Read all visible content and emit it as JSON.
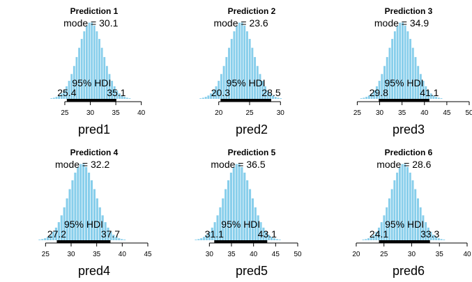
{
  "chart_data": [
    {
      "type": "bar",
      "title": "Prediction 1",
      "xlabel": "pred1",
      "mode_label": "mode = 30.1",
      "hdi_label": "95% HDI",
      "hdi_low_label": "25.4",
      "hdi_high_label": "35.1",
      "mode": 30.1,
      "hdi": [
        25.4,
        35.1
      ],
      "xlim": [
        22,
        41
      ],
      "xticks": [
        "25",
        "30",
        "35",
        "40"
      ],
      "color": "#87ceeb"
    },
    {
      "type": "bar",
      "title": "Prediction 2",
      "xlabel": "pred2",
      "mode_label": "mode = 23.6",
      "hdi_label": "95% HDI",
      "hdi_low_label": "20.3",
      "hdi_high_label": "28.5",
      "mode": 23.6,
      "hdi": [
        20.3,
        28.5
      ],
      "xlim": [
        18,
        32
      ],
      "xticks": [
        "20",
        "25",
        "30"
      ],
      "color": "#87ceeb"
    },
    {
      "type": "bar",
      "title": "Prediction 3",
      "xlabel": "pred3",
      "mode_label": "mode = 34.9",
      "hdi_label": "95% HDI",
      "hdi_low_label": "29.8",
      "hdi_high_label": "41.1",
      "mode": 34.9,
      "hdi": [
        29.8,
        41.1
      ],
      "xlim": [
        24,
        50
      ],
      "xticks": [
        "25",
        "30",
        "35",
        "40",
        "45",
        "50"
      ],
      "color": "#87ceeb"
    },
    {
      "type": "bar",
      "title": "Prediction 4",
      "xlabel": "pred4",
      "mode_label": "mode = 32.2",
      "hdi_label": "95% HDI",
      "hdi_low_label": "27.2",
      "hdi_high_label": "37.7",
      "mode": 32.2,
      "hdi": [
        27.2,
        37.7
      ],
      "xlim": [
        24,
        45
      ],
      "xticks": [
        "25",
        "30",
        "35",
        "40",
        "45"
      ],
      "color": "#87ceeb"
    },
    {
      "type": "bar",
      "title": "Prediction 5",
      "xlabel": "pred5",
      "mode_label": "mode = 36.5",
      "hdi_label": "95% HDI",
      "hdi_low_label": "31.1",
      "hdi_high_label": "43.1",
      "mode": 36.5,
      "hdi": [
        31.1,
        43.1
      ],
      "xlim": [
        29,
        50
      ],
      "xticks": [
        "30",
        "35",
        "40",
        "45",
        "50"
      ],
      "color": "#87ceeb"
    },
    {
      "type": "bar",
      "title": "Prediction 6",
      "xlabel": "pred6",
      "mode_label": "mode = 28.6",
      "hdi_label": "95% HDI",
      "hdi_low_label": "24.1",
      "hdi_high_label": "33.3",
      "mode": 28.6,
      "hdi": [
        24.1,
        33.3
      ],
      "xlim": [
        19,
        40
      ],
      "xticks": [
        "20",
        "25",
        "30",
        "35",
        "40"
      ],
      "color": "#87ceeb"
    }
  ]
}
